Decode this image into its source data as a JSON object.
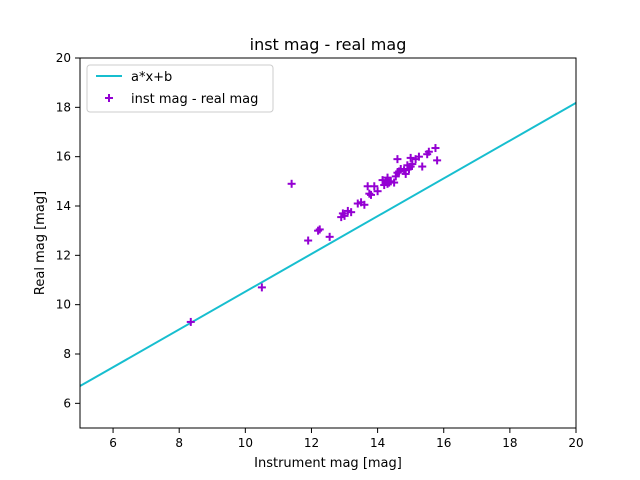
{
  "chart_data": {
    "type": "scatter",
    "title": "inst mag - real mag",
    "xlabel": "Instrument mag [mag]",
    "ylabel": "Real mag [mag]",
    "xlim": [
      5,
      20
    ],
    "ylim": [
      5,
      20
    ],
    "xticks": [
      6,
      8,
      10,
      12,
      14,
      16,
      18,
      20
    ],
    "yticks": [
      6,
      8,
      10,
      12,
      14,
      16,
      18,
      20
    ],
    "grid": false,
    "legend_position": "top-left",
    "series": [
      {
        "name": "a*x+b",
        "kind": "line",
        "color": "#17becf",
        "x": [
          5,
          20
        ],
        "y": [
          6.7,
          18.18
        ]
      },
      {
        "name": "inst mag - real mag",
        "kind": "scatter",
        "marker": "plus",
        "color": "#9400d3",
        "x": [
          8.35,
          10.5,
          11.4,
          11.9,
          12.2,
          12.25,
          12.55,
          12.9,
          12.95,
          13.0,
          13.1,
          13.2,
          13.4,
          13.5,
          13.6,
          13.7,
          13.75,
          13.8,
          13.9,
          14.0,
          14.15,
          14.2,
          14.25,
          14.3,
          14.3,
          14.35,
          14.4,
          14.5,
          14.55,
          14.6,
          14.6,
          14.65,
          14.7,
          14.8,
          14.85,
          14.9,
          14.95,
          15.0,
          15.0,
          15.05,
          15.15,
          15.25,
          15.35,
          15.5,
          15.55,
          15.75,
          15.8
        ],
        "y": [
          9.3,
          10.7,
          14.9,
          12.6,
          13.0,
          13.05,
          12.75,
          13.55,
          13.7,
          13.6,
          13.8,
          13.75,
          14.1,
          14.15,
          14.05,
          14.8,
          14.5,
          14.45,
          14.8,
          14.6,
          15.05,
          14.85,
          15.0,
          15.15,
          14.9,
          14.95,
          15.0,
          14.95,
          15.2,
          15.35,
          15.9,
          15.4,
          15.5,
          15.45,
          15.3,
          15.65,
          15.5,
          15.95,
          15.6,
          15.7,
          15.9,
          16.0,
          15.6,
          16.1,
          16.2,
          16.35,
          15.85
        ]
      }
    ]
  }
}
